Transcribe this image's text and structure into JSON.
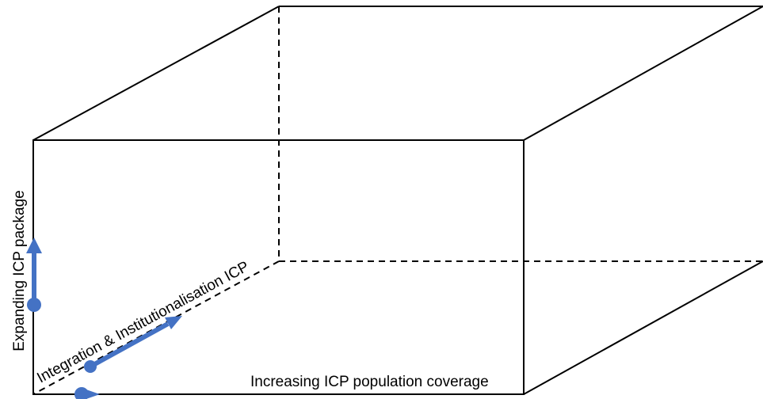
{
  "labels": {
    "vertical_axis": "Expanding ICP package",
    "horizontal_axis": "Increasing ICP population coverage",
    "depth_axis": "Integration & Institutionalisation ICP"
  },
  "colors": {
    "edges": "#000000",
    "arrows": "#4472C4",
    "background": "#FFFFFF"
  }
}
